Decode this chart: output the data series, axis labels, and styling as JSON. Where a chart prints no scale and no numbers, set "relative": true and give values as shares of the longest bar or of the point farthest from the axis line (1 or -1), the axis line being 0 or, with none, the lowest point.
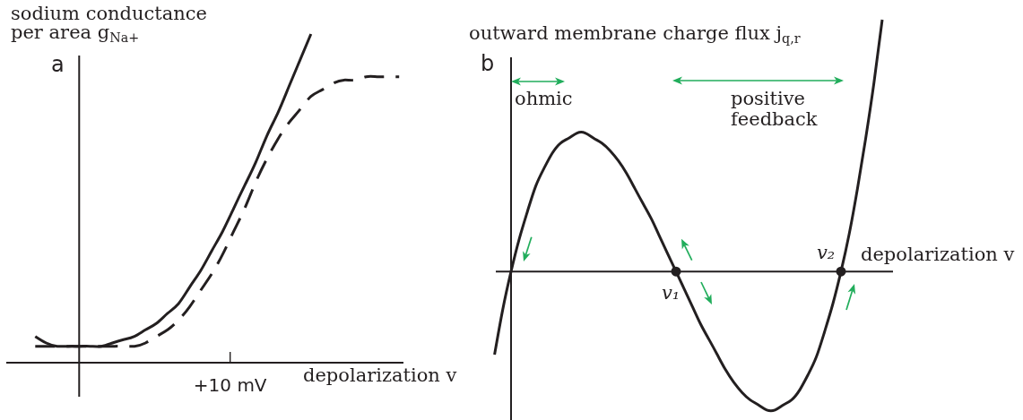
{
  "chart_data": [
    {
      "type": "line",
      "ylabel": "sodium conductance per area g$_{Na+}$",
      "xlabel": "depolarization v",
      "annotations": [
        "a",
        "+10 mV"
      ],
      "relative": true,
      "marker": "none",
      "categories": [
        null,
        null,
        null,
        null,
        null,
        null,
        null,
        null,
        null,
        null,
        null,
        null,
        null,
        null,
        null,
        null,
        null,
        null,
        null,
        null,
        null,
        null,
        null,
        null,
        null,
        null,
        null,
        null,
        null,
        null,
        null,
        null,
        null,
        null
      ],
      "series": [
        {
          "color": "#231f20",
          "line_style": "solid",
          "values": [
            0.08,
            0.06,
            0.05,
            0.05,
            0.05,
            0.05,
            0.05,
            0.06,
            0.07,
            0.08,
            0.1,
            0.12,
            0.15,
            0.18,
            0.23,
            0.28,
            0.34,
            0.4,
            0.47,
            0.54,
            0.61,
            0.69,
            0.76,
            0.84,
            0.92,
            1,
            null,
            null,
            null,
            null,
            null,
            null,
            null,
            null
          ]
        },
        {
          "color": "#231f20",
          "line_style": "dashed",
          "values": [
            0.05,
            0.05,
            0.05,
            0.05,
            0.05,
            0.05,
            0.05,
            0.05,
            0.05,
            0.05,
            0.06,
            0.08,
            0.1,
            0.13,
            0.17,
            0.22,
            0.27,
            0.33,
            0.4,
            0.47,
            0.55,
            0.62,
            0.68,
            0.73,
            0.77,
            0.81,
            0.83,
            0.85,
            0.86,
            0.86,
            0.87,
            0.87,
            0.87,
            0.87
          ]
        }
      ]
    },
    {
      "type": "line",
      "ylabel": "outward membrane charge flux j$_{q,r}$",
      "xlabel": "depolarization v",
      "annotations": [
        "b",
        "ohmic",
        "positive feedback",
        "v₁",
        "v₂"
      ],
      "relative": true,
      "marker": "none",
      "categories": [
        null,
        null,
        null,
        null,
        null,
        null,
        null,
        null,
        null,
        null,
        null,
        null,
        null,
        null,
        null,
        null,
        null,
        null,
        null,
        null,
        null,
        null,
        null,
        null,
        null,
        null,
        null,
        null,
        null,
        null,
        null,
        null,
        null,
        null,
        null,
        null,
        null,
        null,
        null,
        null,
        null,
        null,
        null,
        null,
        null,
        null,
        null,
        null
      ],
      "series": [
        {
          "color": "#231f20",
          "values": [
            -0.33,
            -0.15,
            0,
            0.13,
            0.24,
            0.34,
            0.41,
            0.47,
            0.51,
            0.53,
            0.55,
            0.55,
            0.53,
            0.51,
            0.48,
            0.44,
            0.39,
            0.33,
            0.27,
            0.21,
            0.14,
            0.07,
            0,
            -0.07,
            -0.14,
            -0.21,
            -0.27,
            -0.33,
            -0.39,
            -0.44,
            -0.48,
            -0.51,
            -0.53,
            -0.55,
            -0.55,
            -0.53,
            -0.51,
            -0.47,
            -0.41,
            -0.34,
            -0.24,
            -0.13,
            0,
            0.15,
            0.33,
            0.53,
            0.75,
            1
          ]
        },
        {
          "marker": "circle",
          "color": "#231f20",
          "values": [
            null,
            null,
            null,
            null,
            null,
            null,
            null,
            null,
            null,
            null,
            null,
            null,
            null,
            null,
            null,
            null,
            null,
            null,
            null,
            null,
            null,
            null,
            0,
            null,
            null,
            null,
            null,
            null,
            null,
            null,
            null,
            null,
            null,
            null,
            null,
            null,
            null,
            null,
            null,
            null,
            null,
            null,
            0,
            null,
            null,
            null,
            null,
            null
          ]
        }
      ]
    }
  ]
}
